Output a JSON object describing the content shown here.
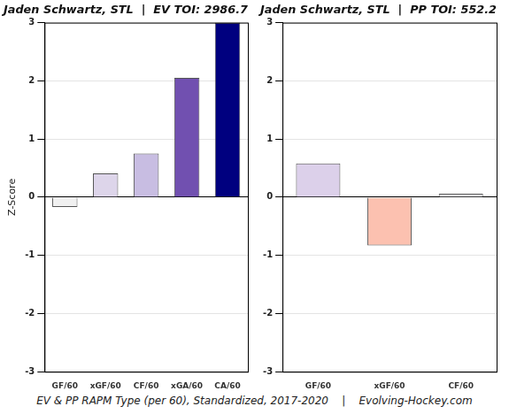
{
  "chart_data": [
    {
      "type": "bar",
      "title": "Jaden Schwartz, STL  |  EV TOI: 2986.7",
      "y_label": "Z-Score",
      "categories": [
        "GF/60",
        "xGF/60",
        "CF/60",
        "xGA/60",
        "CA/60"
      ],
      "values": [
        -0.17,
        0.41,
        0.75,
        2.05,
        3.0
      ],
      "colors": [
        "#f0f0f0",
        "#ddd5ea",
        "#c8bde2",
        "#7150b0",
        "#00007f"
      ],
      "ylim": [
        -3,
        3
      ],
      "yticks": [
        -3,
        -2,
        -1,
        0,
        1,
        2,
        3
      ],
      "grid": true
    },
    {
      "type": "bar",
      "title": "Jaden Schwartz, STL  |  PP TOI: 552.2",
      "categories": [
        "GF/60",
        "xGF/60",
        "CF/60"
      ],
      "values": [
        0.58,
        -0.83,
        0.06
      ],
      "colors": [
        "#dcd0ea",
        "#fcc1b0",
        "#f4f2f8"
      ],
      "ylim": [
        -3,
        3
      ],
      "yticks": [
        -3,
        -2,
        -1,
        0,
        1,
        2,
        3
      ],
      "grid": true
    }
  ],
  "footer": "EV & PP RAPM Type (per 60), Standardized, 2017-2020    |    Evolving-Hockey.com"
}
